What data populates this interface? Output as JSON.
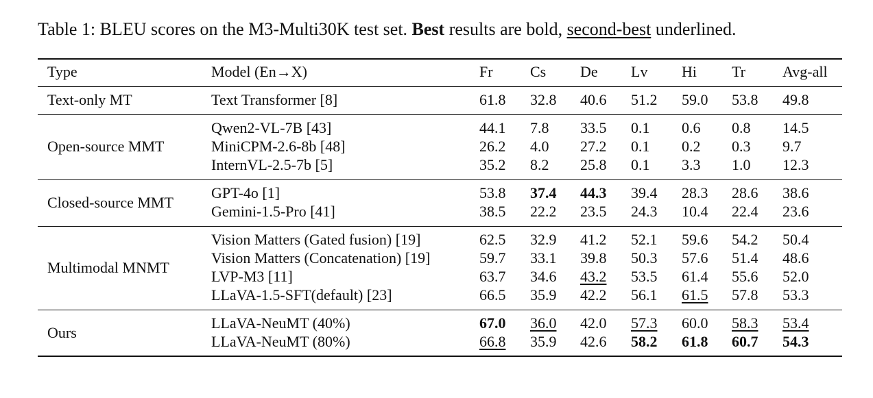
{
  "caption": {
    "parts": [
      "Table 1: BLEU scores on the M3-Multi30K test set. ",
      "Best",
      " results are bold, ",
      "second-best",
      " underlined."
    ]
  },
  "table": {
    "header": [
      "Type",
      "Model (En→X)",
      "Fr",
      "Cs",
      "De",
      "Lv",
      "Hi",
      "Tr",
      "Avg-all"
    ],
    "groups": [
      {
        "type": "Text-only MT",
        "rows": [
          {
            "model": "Text Transformer [8]",
            "scores": [
              "61.8",
              "32.8",
              "40.6",
              "51.2",
              "59.0",
              "53.8",
              "49.8"
            ]
          }
        ]
      },
      {
        "type": "Open-source MMT",
        "rows": [
          {
            "model": "Qwen2-VL-7B [43]",
            "scores": [
              "44.1",
              "7.8",
              "33.5",
              "0.1",
              "0.6",
              "0.8",
              "14.5"
            ]
          },
          {
            "model": "MiniCPM-2.6-8b [48]",
            "scores": [
              "26.2",
              "4.0",
              "27.2",
              "0.1",
              "0.2",
              "0.3",
              "9.7"
            ]
          },
          {
            "model": "InternVL-2.5-7b [5]",
            "scores": [
              "35.2",
              "8.2",
              "25.8",
              "0.1",
              "3.3",
              "1.0",
              "12.3"
            ]
          }
        ]
      },
      {
        "type": "Closed-source MMT",
        "rows": [
          {
            "model": "GPT-4o [1]",
            "scores": [
              "53.8",
              "37.4",
              "44.3",
              "39.4",
              "28.3",
              "28.6",
              "38.6"
            ],
            "bold": [
              1,
              2
            ]
          },
          {
            "model": "Gemini-1.5-Pro [41]",
            "scores": [
              "38.5",
              "22.2",
              "23.5",
              "24.3",
              "10.4",
              "22.4",
              "23.6"
            ]
          }
        ]
      },
      {
        "type": "Multimodal MNMT",
        "rows": [
          {
            "model": "Vision Matters (Gated fusion) [19]",
            "scores": [
              "62.5",
              "32.9",
              "41.2",
              "52.1",
              "59.6",
              "54.2",
              "50.4"
            ]
          },
          {
            "model": "Vision Matters (Concatenation) [19]",
            "scores": [
              "59.7",
              "33.1",
              "39.8",
              "50.3",
              "57.6",
              "51.4",
              "48.6"
            ]
          },
          {
            "model": "LVP-M3 [11]",
            "scores": [
              "63.7",
              "34.6",
              "43.2",
              "53.5",
              "61.4",
              "55.6",
              "52.0"
            ],
            "underline": [
              2
            ]
          },
          {
            "model": "LLaVA-1.5-SFT(default) [23]",
            "scores": [
              "66.5",
              "35.9",
              "42.2",
              "56.1",
              "61.5",
              "57.8",
              "53.3"
            ],
            "underline": [
              4
            ]
          }
        ]
      },
      {
        "type": "Ours",
        "rows": [
          {
            "model": "LLaVA-NeuMT (40%)",
            "scores": [
              "67.0",
              "36.0",
              "42.0",
              "57.3",
              "60.0",
              "58.3",
              "53.4"
            ],
            "bold": [
              0
            ],
            "underline": [
              1,
              3,
              5,
              6
            ]
          },
          {
            "model": "LLaVA-NeuMT (80%)",
            "scores": [
              "66.8",
              "35.9",
              "42.6",
              "58.2",
              "61.8",
              "60.7",
              "54.3"
            ],
            "bold": [
              3,
              4,
              5,
              6
            ],
            "underline": [
              0
            ]
          }
        ]
      }
    ]
  }
}
